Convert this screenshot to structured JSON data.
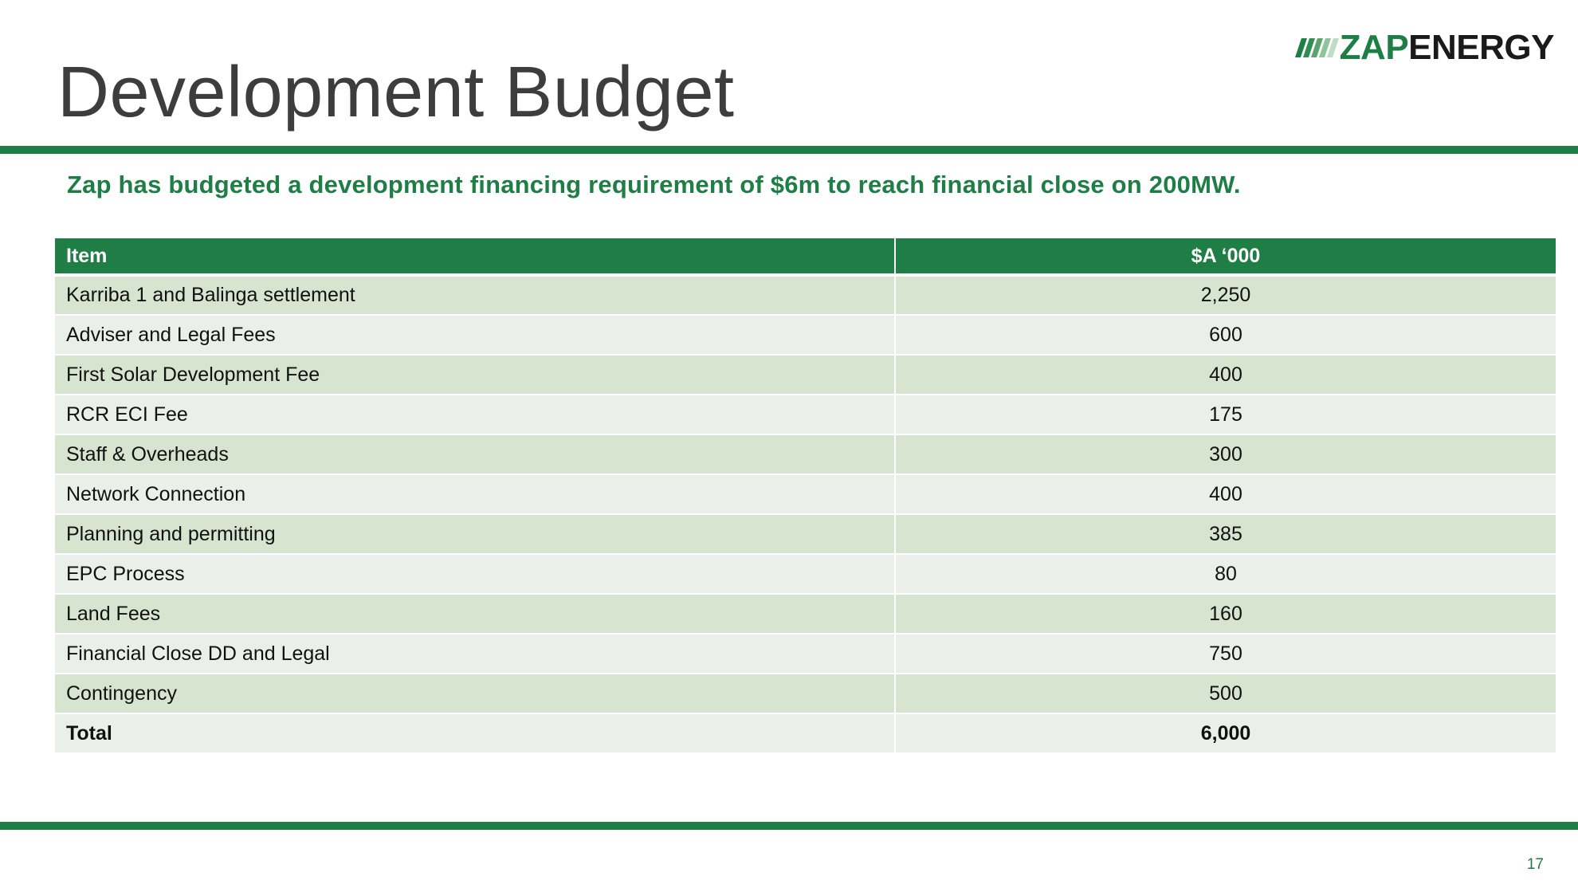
{
  "slide": {
    "title": "Development Budget",
    "subtitle": "Zap has budgeted a development financing requirement of $6m to reach financial close on 200MW.",
    "page_number": "17"
  },
  "logo": {
    "zap": "ZAP",
    "energy": "ENERGY",
    "brand_color": "#1e7e45"
  },
  "table": {
    "headers": [
      "Item",
      "$A ‘000"
    ],
    "rows": [
      {
        "item": "Karriba 1 and Balinga settlement",
        "amount": "2,250"
      },
      {
        "item": "Adviser and Legal Fees",
        "amount": "600"
      },
      {
        "item": "First Solar Development Fee",
        "amount": "400"
      },
      {
        "item": "RCR ECI Fee",
        "amount": "175"
      },
      {
        "item": "Staff & Overheads",
        "amount": "300"
      },
      {
        "item": "Network Connection",
        "amount": "400"
      },
      {
        "item": "Planning and permitting",
        "amount": "385"
      },
      {
        "item": "EPC Process",
        "amount": "80"
      },
      {
        "item": "Land Fees",
        "amount": "160"
      },
      {
        "item": "Financial Close DD and Legal",
        "amount": "750"
      },
      {
        "item": "Contingency",
        "amount": "500"
      }
    ],
    "total": {
      "item": "Total",
      "amount": "6,000"
    }
  },
  "colors": {
    "accent_green": "#1e7e45",
    "row_dark": "#d7e4d0",
    "row_light": "#eaf0e9",
    "title_gray": "#3d3d3d"
  }
}
